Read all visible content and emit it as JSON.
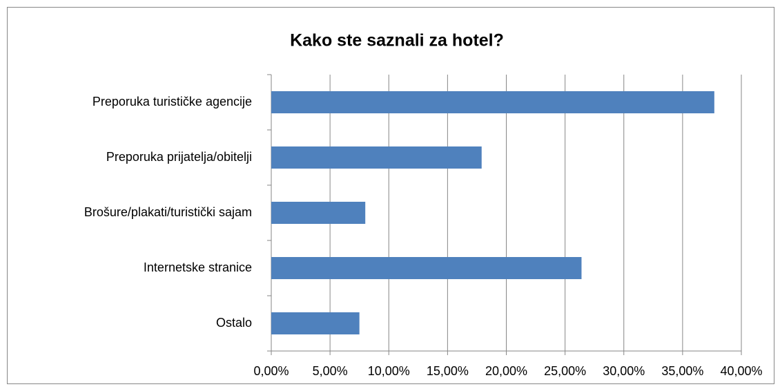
{
  "chart_data": {
    "type": "hbar",
    "title": "Kako ste saznali za hotel?",
    "categories": [
      "Preporuka turističke agencije",
      "Preporuka prijatelja/obitelji",
      "Brošure/plakati/turistički sajam",
      "Internetske stranice",
      "Ostalo"
    ],
    "values": [
      37.7,
      17.9,
      8.0,
      26.4,
      7.5
    ],
    "color": "#4f81bd",
    "xlim": [
      0,
      40
    ],
    "xticks": [
      {
        "value": 0,
        "label": "0,00%"
      },
      {
        "value": 5,
        "label": "5,00%"
      },
      {
        "value": 10,
        "label": "10,00%"
      },
      {
        "value": 15,
        "label": "15,00%"
      },
      {
        "value": 20,
        "label": "20,00%"
      },
      {
        "value": 25,
        "label": "25,00%"
      },
      {
        "value": 30,
        "label": "30,00%"
      },
      {
        "value": 35,
        "label": "35,00%"
      },
      {
        "value": 40,
        "label": "40,00%"
      }
    ],
    "grid": true
  }
}
